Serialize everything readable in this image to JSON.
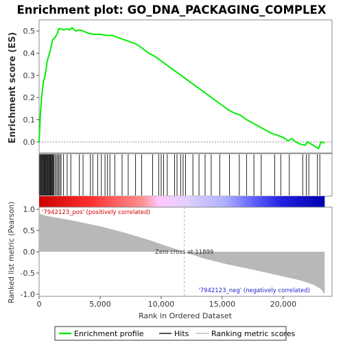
{
  "chart_data": {
    "type": "line",
    "title": "Enrichment plot: GO_DNA_PACKAGING_COMPLEX",
    "top_panel": {
      "ylabel": "Enrichment score (ES)",
      "ylim": [
        -0.05,
        0.55
      ],
      "yticks": [
        "0.0",
        "0.1",
        "0.2",
        "0.3",
        "0.4",
        "0.5"
      ],
      "ytick_values": [
        0.0,
        0.1,
        0.2,
        0.3,
        0.4,
        0.5
      ],
      "series_color": "#00ee00",
      "es_curve": [
        [
          0,
          0.0
        ],
        [
          100,
          0.12
        ],
        [
          200,
          0.2
        ],
        [
          350,
          0.27
        ],
        [
          500,
          0.3
        ],
        [
          650,
          0.36
        ],
        [
          800,
          0.39
        ],
        [
          950,
          0.42
        ],
        [
          1100,
          0.46
        ],
        [
          1300,
          0.47
        ],
        [
          1500,
          0.49
        ],
        [
          1600,
          0.51
        ],
        [
          1800,
          0.51
        ],
        [
          2000,
          0.505
        ],
        [
          2300,
          0.51
        ],
        [
          2500,
          0.505
        ],
        [
          2700,
          0.515
        ],
        [
          3000,
          0.5
        ],
        [
          3300,
          0.505
        ],
        [
          3600,
          0.5
        ],
        [
          4000,
          0.49
        ],
        [
          4500,
          0.485
        ],
        [
          5000,
          0.485
        ],
        [
          5500,
          0.48
        ],
        [
          6000,
          0.48
        ],
        [
          6500,
          0.47
        ],
        [
          7000,
          0.46
        ],
        [
          7500,
          0.45
        ],
        [
          8000,
          0.44
        ],
        [
          8500,
          0.42
        ],
        [
          9000,
          0.4
        ],
        [
          9500,
          0.385
        ],
        [
          10000,
          0.365
        ],
        [
          10500,
          0.345
        ],
        [
          11000,
          0.325
        ],
        [
          11500,
          0.305
        ],
        [
          12000,
          0.285
        ],
        [
          12500,
          0.265
        ],
        [
          13000,
          0.245
        ],
        [
          13500,
          0.225
        ],
        [
          14000,
          0.205
        ],
        [
          14500,
          0.185
        ],
        [
          15000,
          0.165
        ],
        [
          15500,
          0.145
        ],
        [
          16000,
          0.13
        ],
        [
          16500,
          0.12
        ],
        [
          17000,
          0.1
        ],
        [
          17500,
          0.085
        ],
        [
          18000,
          0.07
        ],
        [
          18500,
          0.055
        ],
        [
          19000,
          0.04
        ],
        [
          19500,
          0.03
        ],
        [
          20000,
          0.02
        ],
        [
          20400,
          0.005
        ],
        [
          20700,
          0.015
        ],
        [
          21000,
          0.0
        ],
        [
          21400,
          -0.01
        ],
        [
          21800,
          -0.015
        ],
        [
          22000,
          0.0
        ],
        [
          22300,
          -0.01
        ],
        [
          22600,
          -0.02
        ],
        [
          22900,
          -0.03
        ],
        [
          23100,
          0.0
        ],
        [
          23400,
          -0.005
        ]
      ]
    },
    "hits_panel": {
      "hit_positions": [
        50,
        100,
        150,
        200,
        250,
        300,
        350,
        400,
        450,
        500,
        550,
        600,
        650,
        700,
        750,
        800,
        850,
        900,
        950,
        1000,
        1050,
        1100,
        1150,
        1200,
        1300,
        1400,
        1500,
        1600,
        1700,
        1800,
        2000,
        2300,
        2600,
        3300,
        3600,
        4200,
        4400,
        4800,
        5100,
        5400,
        5600,
        5800,
        6200,
        6800,
        7300,
        7900,
        8400,
        9300,
        9800,
        10000,
        10200,
        10500,
        11100,
        11300,
        11600,
        11800,
        12000,
        12600,
        13100,
        13600,
        14100,
        14800,
        15600,
        16400,
        17000,
        17600,
        18200,
        19300,
        19800,
        20500,
        21600,
        21900,
        22100,
        22800,
        23000
      ]
    },
    "bottom_panel": {
      "ylabel": "Ranked list metric (Pearson)",
      "ylim": [
        -1.05,
        1.05
      ],
      "yticks": [
        "1.0",
        "0.5",
        "0.0",
        "-0.5",
        "-1.0"
      ],
      "ytick_values": [
        1.0,
        0.5,
        0.0,
        -0.5,
        -1.0
      ],
      "metric_curve": [
        [
          0,
          0.9
        ],
        [
          500,
          0.85
        ],
        [
          1500,
          0.8
        ],
        [
          3000,
          0.72
        ],
        [
          5000,
          0.6
        ],
        [
          7000,
          0.45
        ],
        [
          9000,
          0.28
        ],
        [
          10500,
          0.13
        ],
        [
          11899,
          0.0
        ],
        [
          13500,
          -0.16
        ],
        [
          15500,
          -0.3
        ],
        [
          17500,
          -0.42
        ],
        [
          19500,
          -0.55
        ],
        [
          21500,
          -0.68
        ],
        [
          22500,
          -0.78
        ],
        [
          23100,
          -0.88
        ],
        [
          23400,
          -1.0
        ]
      ],
      "zero_cross_label": "Zero cross at 11899",
      "zero_cross_x": 11899,
      "pos_label": "'7942123_pos' (positively correlated)",
      "neg_label": "'7942123_neg' (negatively correlated)",
      "pos_color": "#ee0000",
      "neg_color": "#0000ee"
    },
    "xlabel": "Rank in Ordered Dataset",
    "xlim": [
      0,
      24000
    ],
    "xtick_values": [
      0,
      5000,
      10000,
      15000,
      20000
    ],
    "xticks": [
      "0",
      "5,000",
      "10,000",
      "15,000",
      "20,000"
    ],
    "n_genes": 23400,
    "legend": {
      "placement": "bottom",
      "entries": [
        {
          "label": "Enrichment profile",
          "color": "#00ee00"
        },
        {
          "label": "Hits",
          "color": "#555555"
        },
        {
          "label": "Ranking metric scores",
          "color": "#cccccc"
        }
      ]
    }
  }
}
